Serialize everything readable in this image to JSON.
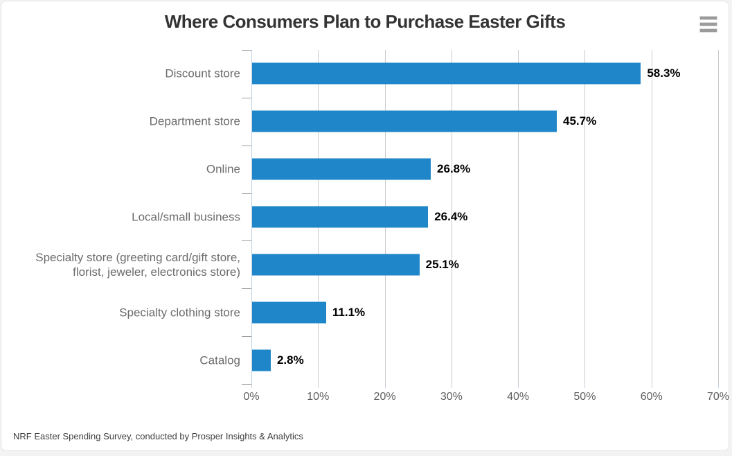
{
  "chart": {
    "title": "Where Consumers Plan to Purchase Easter Gifts",
    "source": "NRF Easter Spending Survey, conducted by Prosper Insights & Analytics",
    "menu_icon": "hamburger-menu"
  },
  "chart_data": {
    "type": "bar",
    "orientation": "horizontal",
    "title": "Where Consumers Plan to Purchase Easter Gifts",
    "categories": [
      "Discount store",
      "Department store",
      "Online",
      "Local/small business",
      "Specialty store (greeting card/gift store,\nflorist, jeweler, electronics store)",
      "Specialty clothing store",
      "Catalog"
    ],
    "values": [
      58.3,
      45.7,
      26.8,
      26.4,
      25.1,
      11.1,
      2.8
    ],
    "data_labels": [
      "58.3%",
      "45.7%",
      "26.8%",
      "26.4%",
      "25.1%",
      "11.1%",
      "2.8%"
    ],
    "xlim": [
      0,
      70
    ],
    "x_tick_labels": [
      "0%",
      "10%",
      "20%",
      "30%",
      "40%",
      "50%",
      "60%",
      "70%"
    ],
    "grid": true,
    "legend": false,
    "xlabel": "",
    "ylabel": "",
    "colors": {
      "bar": "#1f87c9",
      "gridline": "#cbcbcb",
      "axis_line": "#c5d2e0",
      "tick": "#9a9a9a",
      "title_text": "#333333",
      "category_text": "#6b6b6b",
      "value_text": "#000000",
      "x_label_text": "#5f5f5f"
    },
    "source": "NRF Easter Spending Survey, conducted by Prosper Insights & Analytics"
  }
}
